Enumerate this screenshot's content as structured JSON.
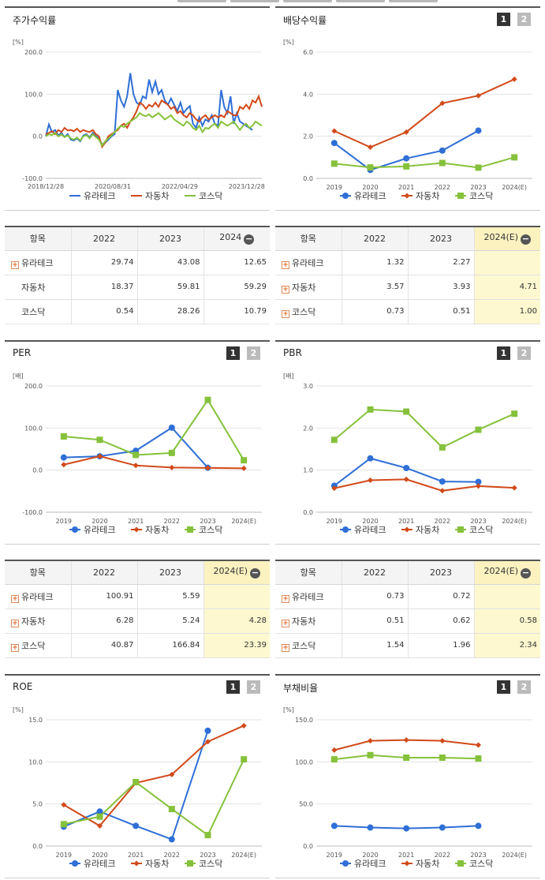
{
  "colors": {
    "company": "#2f6fd6",
    "auto": "#d14a1a",
    "kosdaq": "#86c13b"
  },
  "legend": [
    "유라테크",
    "자동차",
    "코스닥"
  ],
  "panels": {
    "stock_return": {
      "title": "주가수익률"
    },
    "dividend": {
      "title": "배당수익률",
      "btn1": "1",
      "btn2": "2"
    },
    "per": {
      "title": "PER",
      "btn1": "1",
      "btn2": "2"
    },
    "pbr": {
      "title": "PBR",
      "btn1": "1",
      "btn2": "2"
    },
    "roe": {
      "title": "ROE",
      "btn1": "1",
      "btn2": "2"
    },
    "debt": {
      "title": "부채비율",
      "btn1": "1",
      "btn2": "2"
    }
  },
  "tables": {
    "stock_return": {
      "headers": [
        "항목",
        "2022",
        "2023",
        "2024"
      ],
      "rows": [
        {
          "name": "유라테크",
          "plus": true,
          "values": [
            "29.74",
            "43.08",
            "12.65"
          ]
        },
        {
          "name": "자동차",
          "plus": false,
          "values": [
            "18.37",
            "59.81",
            "59.29"
          ]
        },
        {
          "name": "코스닥",
          "plus": false,
          "values": [
            "0.54",
            "28.26",
            "10.79"
          ]
        }
      ]
    },
    "dividend": {
      "headers": [
        "항목",
        "2022",
        "2023",
        "2024(E)"
      ],
      "rows": [
        {
          "name": "유라테크",
          "plus": true,
          "values": [
            "1.32",
            "2.27",
            ""
          ]
        },
        {
          "name": "자동차",
          "plus": true,
          "values": [
            "3.57",
            "3.93",
            "4.71"
          ]
        },
        {
          "name": "코스닥",
          "plus": true,
          "values": [
            "0.73",
            "0.51",
            "1.00"
          ]
        }
      ]
    },
    "per": {
      "headers": [
        "항목",
        "2022",
        "2023",
        "2024(E)"
      ],
      "rows": [
        {
          "name": "유라테크",
          "plus": true,
          "values": [
            "100.91",
            "5.59",
            ""
          ]
        },
        {
          "name": "자동차",
          "plus": true,
          "values": [
            "6.28",
            "5.24",
            "4.28"
          ]
        },
        {
          "name": "코스닥",
          "plus": true,
          "values": [
            "40.87",
            "166.84",
            "23.39"
          ]
        }
      ]
    },
    "pbr": {
      "headers": [
        "항목",
        "2022",
        "2023",
        "2024(E)"
      ],
      "rows": [
        {
          "name": "유라테크",
          "plus": true,
          "values": [
            "0.73",
            "0.72",
            ""
          ]
        },
        {
          "name": "자동차",
          "plus": true,
          "values": [
            "0.51",
            "0.62",
            "0.58"
          ]
        },
        {
          "name": "코스닥",
          "plus": true,
          "values": [
            "1.54",
            "1.96",
            "2.34"
          ]
        }
      ]
    }
  },
  "chart_data": [
    {
      "id": "stock_return",
      "type": "line",
      "unit": "[%]",
      "ylim": [
        -100,
        200
      ],
      "yticks": [
        "-100.0",
        "0.0",
        "100.0",
        "200.0"
      ],
      "xticks": [
        "2018/12/28",
        "2020/08/31",
        "2022/04/29",
        "2023/12/28"
      ],
      "x_range": [
        "2018-12-28",
        "2024-07-31"
      ],
      "series": [
        {
          "name": "유라테크",
          "color": "#2f6fd6",
          "values": [
            0,
            28,
            10,
            15,
            2,
            8,
            -2,
            5,
            -8,
            -10,
            -5,
            -12,
            2,
            5,
            -3,
            8,
            0,
            -5,
            -20,
            -15,
            -8,
            0,
            5,
            110,
            85,
            70,
            95,
            150,
            100,
            80,
            75,
            95,
            90,
            135,
            105,
            130,
            100,
            110,
            85,
            75,
            90,
            75,
            60,
            80,
            55,
            65,
            72,
            30,
            20,
            45,
            25,
            40,
            35,
            50,
            30,
            25,
            110,
            70,
            55,
            95,
            30,
            55,
            35,
            30,
            25,
            20,
            15
          ]
        },
        {
          "name": "자동차",
          "color": "#d14a1a",
          "values": [
            5,
            8,
            12,
            5,
            15,
            10,
            20,
            14,
            15,
            12,
            18,
            10,
            15,
            12,
            10,
            15,
            5,
            0,
            -25,
            -15,
            0,
            5,
            10,
            15,
            25,
            30,
            20,
            35,
            45,
            60,
            80,
            75,
            65,
            75,
            70,
            80,
            70,
            85,
            80,
            75,
            65,
            70,
            55,
            60,
            50,
            45,
            55,
            50,
            40,
            35,
            45,
            50,
            40,
            45,
            50,
            45,
            50,
            45,
            60,
            55,
            50,
            50,
            70,
            65,
            75,
            65,
            85,
            80,
            95,
            70
          ]
        },
        {
          "name": "코스닥",
          "color": "#86c13b",
          "values": [
            0,
            5,
            3,
            8,
            0,
            4,
            -2,
            2,
            -5,
            -8,
            -3,
            -10,
            0,
            3,
            -5,
            5,
            -2,
            -8,
            -22,
            -12,
            -5,
            2,
            10,
            18,
            25,
            22,
            30,
            35,
            40,
            45,
            55,
            50,
            48,
            52,
            45,
            50,
            55,
            48,
            40,
            45,
            50,
            40,
            35,
            30,
            25,
            35,
            30,
            20,
            15,
            25,
            10,
            20,
            18,
            25,
            30,
            20,
            35,
            30,
            25,
            30,
            35,
            25,
            15,
            25,
            30,
            20,
            25,
            35,
            30,
            25
          ]
        }
      ]
    },
    {
      "id": "dividend",
      "type": "line",
      "unit": "[%]",
      "categories": [
        "2019",
        "2020",
        "2021",
        "2022",
        "2023",
        "2024(E)"
      ],
      "ylim": [
        0,
        6
      ],
      "yticks": [
        "0.0",
        "2.0",
        "4.0",
        "6.0"
      ],
      "series": [
        {
          "name": "유라테크",
          "color": "#2f6fd6",
          "marker": "circle",
          "values": [
            1.68,
            0.4,
            0.95,
            1.32,
            2.27,
            null
          ]
        },
        {
          "name": "자동차",
          "color": "#d14a1a",
          "marker": "diamond",
          "values": [
            2.25,
            1.48,
            2.2,
            3.57,
            3.93,
            4.71
          ]
        },
        {
          "name": "코스닥",
          "color": "#86c13b",
          "marker": "square",
          "values": [
            0.7,
            0.52,
            0.57,
            0.73,
            0.51,
            1.0
          ]
        }
      ]
    },
    {
      "id": "per",
      "type": "line",
      "unit": "[배]",
      "categories": [
        "2019",
        "2020",
        "2021",
        "2022",
        "2023",
        "2024(E)"
      ],
      "ylim": [
        -100,
        200
      ],
      "yticks": [
        "-100.0",
        "0.0",
        "100.0",
        "200.0"
      ],
      "series": [
        {
          "name": "유라테크",
          "color": "#2f6fd6",
          "marker": "circle",
          "values": [
            30,
            33,
            46,
            100.91,
            5.59,
            null
          ]
        },
        {
          "name": "자동차",
          "color": "#d14a1a",
          "marker": "diamond",
          "values": [
            13,
            33,
            11,
            6.28,
            5.24,
            4.28
          ]
        },
        {
          "name": "코스닥",
          "color": "#86c13b",
          "marker": "square",
          "values": [
            80,
            72,
            36,
            40.87,
            166.84,
            23.39
          ]
        }
      ]
    },
    {
      "id": "pbr",
      "type": "line",
      "unit": "[배]",
      "categories": [
        "2019",
        "2020",
        "2021",
        "2022",
        "2023",
        "2024(E)"
      ],
      "ylim": [
        0,
        3
      ],
      "yticks": [
        "0.0",
        "1.0",
        "2.0",
        "3.0"
      ],
      "series": [
        {
          "name": "유라테크",
          "color": "#2f6fd6",
          "marker": "circle",
          "values": [
            0.63,
            1.28,
            1.05,
            0.73,
            0.72,
            null
          ]
        },
        {
          "name": "자동차",
          "color": "#d14a1a",
          "marker": "diamond",
          "values": [
            0.57,
            0.76,
            0.78,
            0.51,
            0.62,
            0.58
          ]
        },
        {
          "name": "코스닥",
          "color": "#86c13b",
          "marker": "square",
          "values": [
            1.72,
            2.44,
            2.39,
            1.54,
            1.96,
            2.34
          ]
        }
      ]
    },
    {
      "id": "roe",
      "type": "line",
      "unit": "[%]",
      "categories": [
        "2019",
        "2020",
        "2021",
        "2022",
        "2023",
        "2024(E)"
      ],
      "ylim": [
        0,
        15
      ],
      "yticks": [
        "0.0",
        "5.0",
        "10.0",
        "15.0"
      ],
      "series": [
        {
          "name": "유라테크",
          "color": "#2f6fd6",
          "marker": "circle",
          "values": [
            2.3,
            4.1,
            2.4,
            0.8,
            13.7,
            null
          ]
        },
        {
          "name": "자동차",
          "color": "#d14a1a",
          "marker": "diamond",
          "values": [
            4.9,
            2.4,
            7.5,
            8.5,
            12.4,
            14.3
          ]
        },
        {
          "name": "코스닥",
          "color": "#86c13b",
          "marker": "square",
          "values": [
            2.6,
            3.5,
            7.6,
            4.4,
            1.3,
            10.3
          ]
        }
      ]
    },
    {
      "id": "debt",
      "type": "line",
      "unit": "[%]",
      "categories": [
        "2019",
        "2020",
        "2021",
        "2022",
        "2023",
        "2024(E)"
      ],
      "ylim": [
        0,
        150
      ],
      "yticks": [
        "0.0",
        "50.0",
        "100.0",
        "150.0"
      ],
      "series": [
        {
          "name": "유라테크",
          "color": "#2f6fd6",
          "marker": "circle",
          "values": [
            24,
            22,
            21,
            22,
            24,
            null
          ]
        },
        {
          "name": "자동차",
          "color": "#d14a1a",
          "marker": "diamond",
          "values": [
            114,
            125,
            126,
            125,
            120,
            null
          ]
        },
        {
          "name": "코스닥",
          "color": "#86c13b",
          "marker": "square",
          "values": [
            103,
            108,
            105,
            105,
            104,
            null
          ]
        }
      ]
    }
  ]
}
